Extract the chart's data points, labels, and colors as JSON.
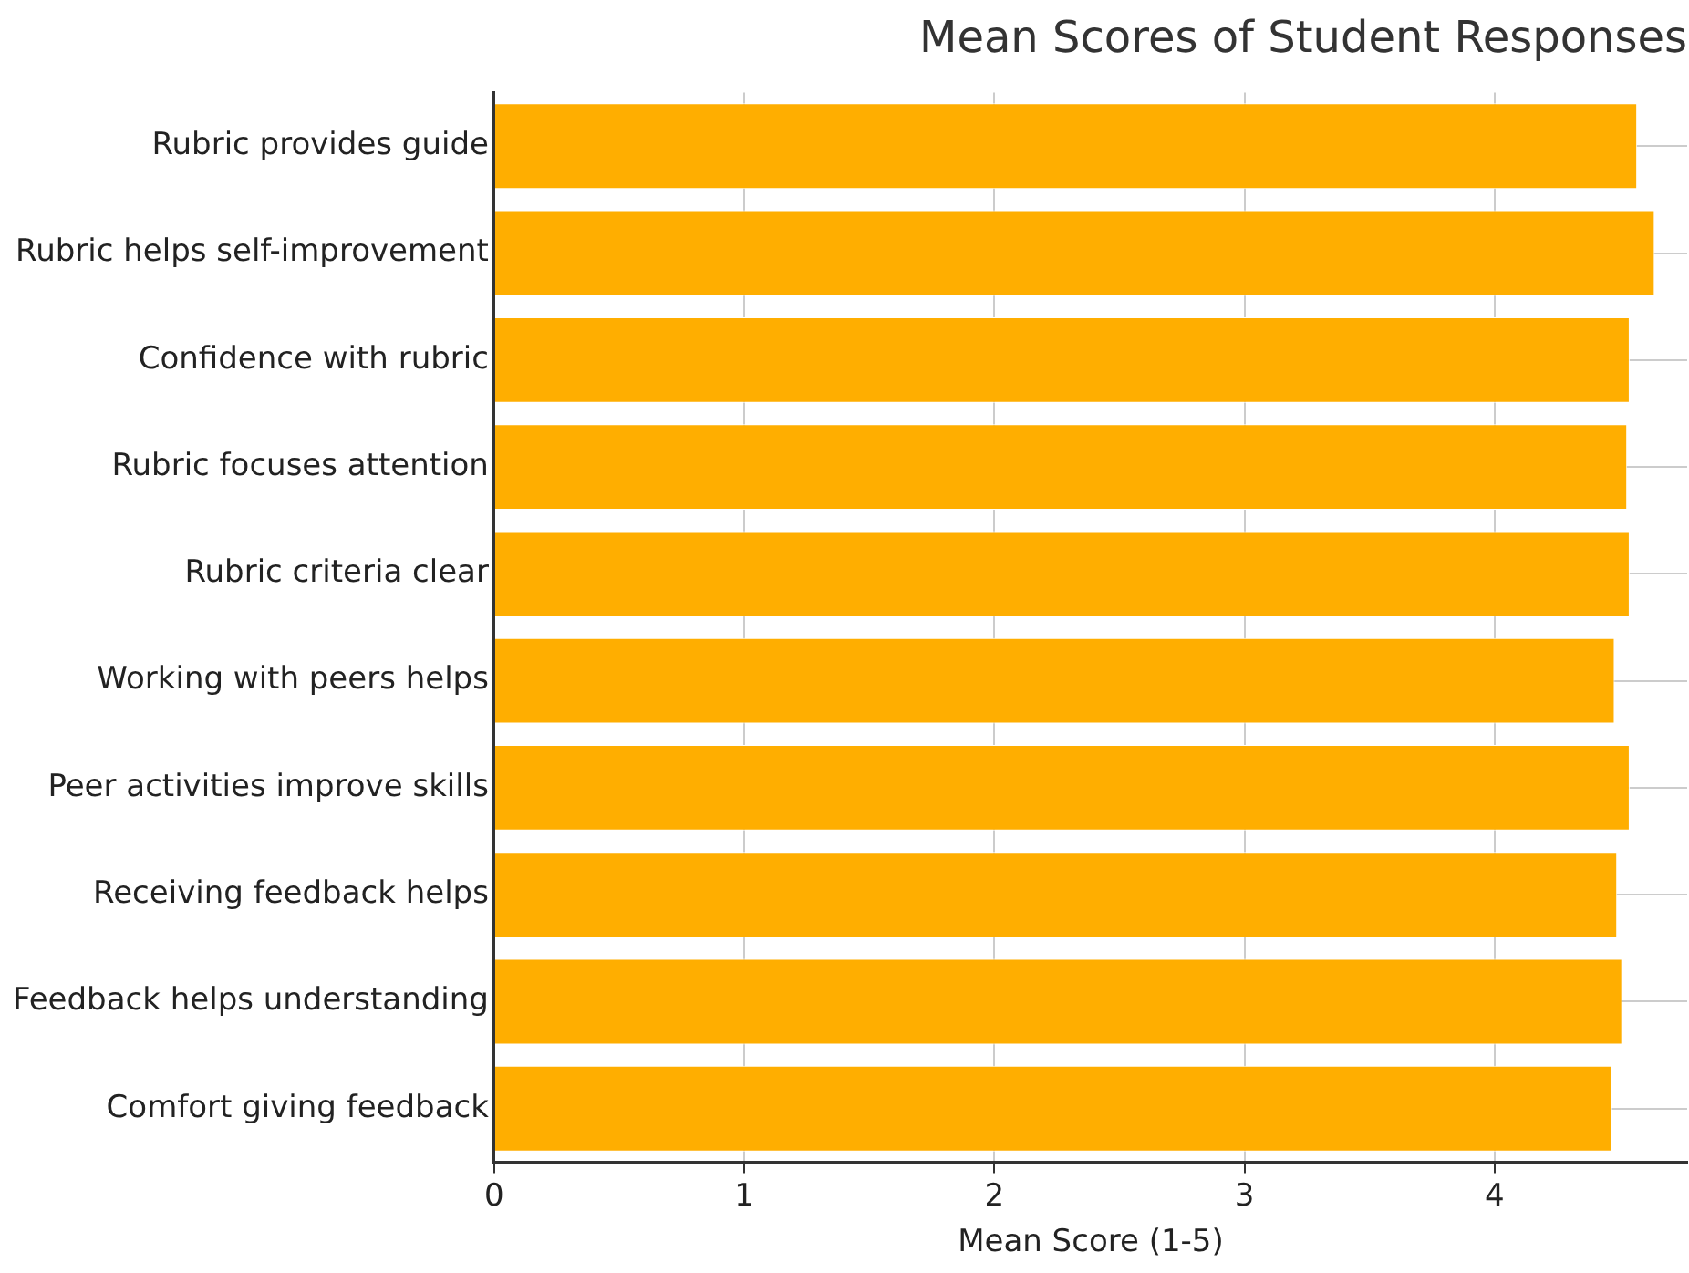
{
  "chart_data": {
    "type": "bar",
    "orientation": "horizontal",
    "title": "Mean Scores of Student Responses",
    "xlabel": "Mean Score (1-5)",
    "categories": [
      "Rubric provides guide",
      "Rubric helps self-improvement",
      "Confidence with rubric",
      "Rubric focuses attention",
      "Rubric criteria clear",
      "Working with peers helps",
      "Peer activities improve skills",
      "Receiving feedback helps",
      "Feedback helps understanding",
      "Comfort giving feedback"
    ],
    "values": [
      4.57,
      4.64,
      4.54,
      4.53,
      4.54,
      4.48,
      4.54,
      4.49,
      4.51,
      4.47
    ],
    "color": "#ffae00",
    "xlim": [
      0,
      4.77
    ],
    "xticks": [
      0,
      1,
      2,
      3,
      4
    ],
    "grid": true,
    "legend": false
  }
}
